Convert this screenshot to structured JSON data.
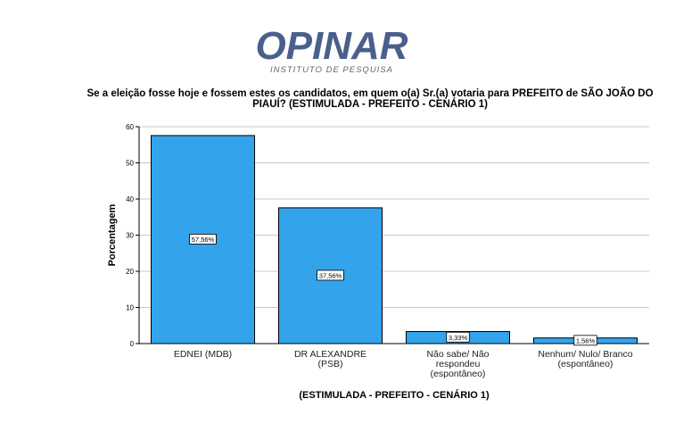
{
  "logo": {
    "name": "OPINAR",
    "subtitle": "INSTITUTO DE PESQUISA"
  },
  "chart_data": {
    "type": "bar",
    "title": "Se a eleição fosse hoje e fossem estes os candidatos, em quem o(a) Sr.(a) votaria para PREFEITO de SÃO JOÃO DO PIAUÍ? (ESTIMULADA - PREFEITO - CENÁRIO 1)",
    "xlabel": "(ESTIMULADA - PREFEITO - CENÁRIO 1)",
    "ylabel": "Porcentagem",
    "ylim": [
      0,
      60
    ],
    "yticks": [
      0,
      10,
      20,
      30,
      40,
      50,
      60
    ],
    "grid": true,
    "categories": [
      [
        "EDNEI (MDB)"
      ],
      [
        "DR ALEXANDRE",
        "(PSB)"
      ],
      [
        "Não sabe/ Não",
        "respondeu",
        "(espontâneo)"
      ],
      [
        "Nenhum/ Nulo/ Branco",
        "(espontâneo)"
      ]
    ],
    "values": [
      57.56,
      37.56,
      3.33,
      1.56
    ],
    "data_labels": [
      "57,56%",
      "37,56%",
      "3,33%",
      "1,56%"
    ],
    "bar_color": "#33a3ec"
  }
}
